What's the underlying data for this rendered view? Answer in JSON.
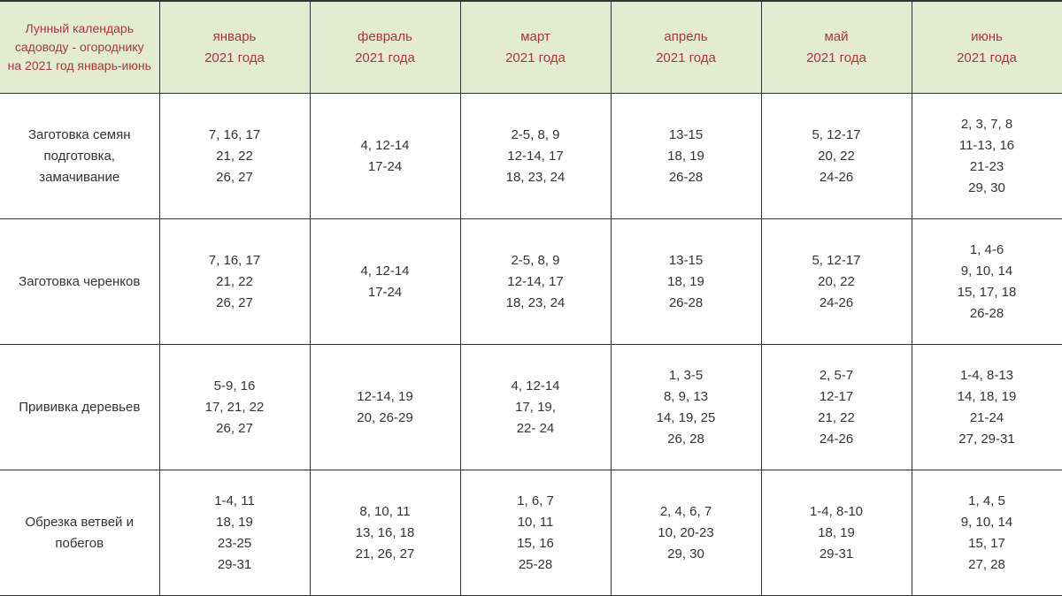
{
  "table": {
    "header_title": "Лунный календарь садоводу - огороднику на 2021 год январь-июнь",
    "months": [
      "январь\n2021 года",
      "февраль\n2021 года",
      "март\n2021 года",
      "апрель\n2021 года",
      "май\n2021 года",
      "июнь\n2021 года"
    ],
    "rows": [
      {
        "label": "Заготовка семян подготовка, замачивание",
        "cells": [
          "7, 16, 17\n21, 22\n26, 27",
          "4, 12-14\n17-24",
          "2-5, 8, 9\n12-14, 17\n18, 23, 24",
          "13-15\n18, 19\n26-28",
          "5, 12-17\n20, 22\n24-26",
          "2, 3, 7, 8\n11-13, 16\n21-23\n29, 30"
        ]
      },
      {
        "label": "Заготовка черенков",
        "cells": [
          "7, 16, 17\n21, 22\n26, 27",
          "4, 12-14\n17-24",
          "2-5, 8, 9\n12-14, 17\n18, 23, 24",
          "13-15\n18, 19\n26-28",
          "5, 12-17\n20, 22\n24-26",
          "1, 4-6\n9, 10, 14\n15, 17, 18\n26-28"
        ]
      },
      {
        "label": "Прививка деревьев",
        "cells": [
          "5-9, 16\n17, 21, 22\n26, 27",
          "12-14, 19\n20, 26-29",
          "4, 12-14\n17, 19,\n22- 24",
          "1, 3-5\n8, 9, 13\n14, 19, 25\n26, 28",
          "2, 5-7\n12-17\n21, 22\n24-26",
          "1-4, 8-13\n14, 18, 19\n21-24\n27, 29-31"
        ]
      },
      {
        "label": "Обрезка ветвей и побегов",
        "cells": [
          "1-4, 11\n18, 19\n23-25\n29-31",
          "8, 10, 11\n13, 16, 18\n21, 26, 27",
          "1, 6, 7\n10, 11\n15, 16\n25-28",
          "2, 4, 6, 7\n10, 20-23\n29, 30",
          "1-4, 8-10\n18, 19\n29-31",
          "1, 4, 5\n9, 10, 14\n15, 17\n27, 28"
        ]
      }
    ],
    "colors": {
      "header_bg": "#e3ecd1",
      "header_text": "#a63838",
      "body_text": "#333333",
      "border": "#333333",
      "body_bg": "#ffffff"
    },
    "font_sizes": {
      "header": 15,
      "body": 15,
      "header_title": 14
    }
  }
}
